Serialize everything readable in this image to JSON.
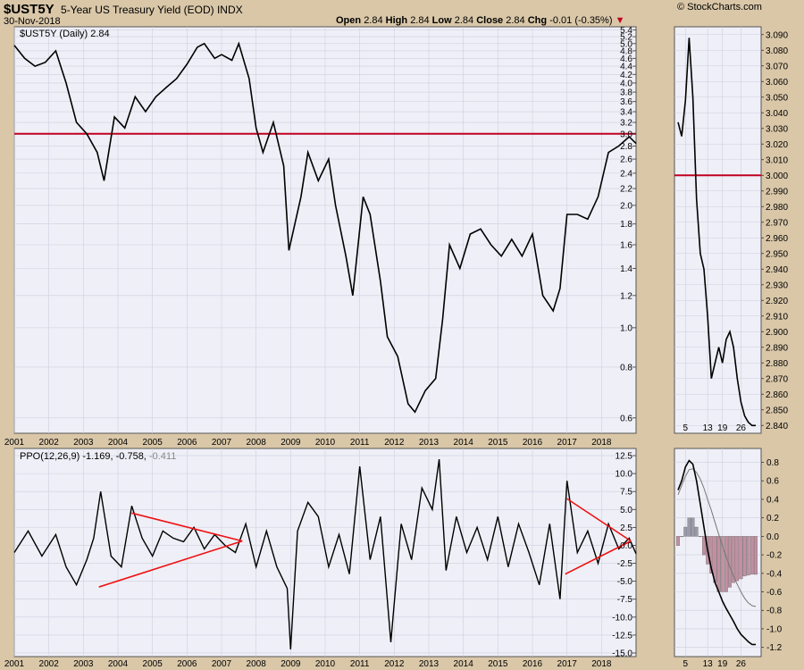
{
  "header": {
    "symbol": "$UST5Y",
    "description": "5-Year US Treasury Yield (EOD)",
    "exchange": "INDX",
    "date": "30-Nov-2018",
    "brand": "© StockCharts.com",
    "ohlc": {
      "open_label": "Open",
      "open": "2.84",
      "high_label": "High",
      "high": "2.84",
      "low_label": "Low",
      "low": "2.84",
      "close_label": "Close",
      "close": "2.84",
      "chg_label": "Chg",
      "chg": "-0.01 (-0.35%)",
      "arrow": "▼"
    }
  },
  "colors": {
    "background": "#d9c7a8",
    "plot_bg": "#efeff7",
    "grid": "#cfcfe0",
    "price_line": "#000000",
    "ref_line": "#c00020",
    "trend_line": "#ee1111",
    "hist_pos": "#9a9aaa",
    "hist_neg": "#c090a0",
    "signal_line": "#777777"
  },
  "chart_data": [
    {
      "id": "main-price",
      "type": "line",
      "legend": "$UST5Y (Daily) 2.84",
      "scale": "log",
      "ylim": [
        0.55,
        5.5
      ],
      "yticks": [
        "5.4",
        "5.2",
        "5.0",
        "4.8",
        "4.6",
        "4.4",
        "4.2",
        "4.0",
        "3.8",
        "3.6",
        "3.4",
        "3.2",
        "3.0",
        "2.8",
        "2.6",
        "2.4",
        "2.2",
        "2.0",
        "1.8",
        "1.6",
        "1.4",
        "1.2",
        "1.0",
        "0.8",
        "0.6"
      ],
      "xlim": [
        2001.0,
        2019.0
      ],
      "xticks": [
        "2001",
        "2002",
        "2003",
        "2004",
        "2005",
        "2006",
        "2007",
        "2008",
        "2009",
        "2010",
        "2011",
        "2012",
        "2013",
        "2014",
        "2015",
        "2016",
        "2017",
        "2018"
      ],
      "reference_line": 3.0,
      "x": [
        2001.0,
        2001.3,
        2001.6,
        2001.9,
        2002.2,
        2002.5,
        2002.8,
        2003.1,
        2003.4,
        2003.6,
        2003.9,
        2004.2,
        2004.5,
        2004.8,
        2005.1,
        2005.4,
        2005.7,
        2006.0,
        2006.3,
        2006.5,
        2006.8,
        2007.0,
        2007.3,
        2007.5,
        2007.8,
        2008.0,
        2008.2,
        2008.5,
        2008.8,
        2008.95,
        2009.3,
        2009.5,
        2009.8,
        2010.1,
        2010.3,
        2010.6,
        2010.8,
        2011.1,
        2011.3,
        2011.6,
        2011.8,
        2012.1,
        2012.4,
        2012.6,
        2012.9,
        2013.2,
        2013.4,
        2013.6,
        2013.9,
        2014.2,
        2014.5,
        2014.8,
        2015.1,
        2015.4,
        2015.7,
        2016.0,
        2016.3,
        2016.6,
        2016.8,
        2017.0,
        2017.3,
        2017.6,
        2017.9,
        2018.2,
        2018.5,
        2018.8,
        2019.0
      ],
      "y": [
        4.95,
        4.6,
        4.4,
        4.5,
        4.8,
        4.0,
        3.2,
        3.0,
        2.7,
        2.3,
        3.3,
        3.1,
        3.7,
        3.4,
        3.7,
        3.9,
        4.1,
        4.45,
        4.9,
        5.0,
        4.6,
        4.7,
        4.55,
        5.0,
        4.1,
        3.1,
        2.7,
        3.2,
        2.5,
        1.55,
        2.1,
        2.7,
        2.3,
        2.6,
        2.0,
        1.5,
        1.2,
        2.1,
        1.9,
        1.3,
        0.95,
        0.85,
        0.65,
        0.62,
        0.7,
        0.75,
        1.05,
        1.6,
        1.4,
        1.7,
        1.75,
        1.6,
        1.5,
        1.65,
        1.5,
        1.7,
        1.2,
        1.1,
        1.25,
        1.9,
        1.9,
        1.85,
        2.1,
        2.7,
        2.8,
        2.95,
        2.84
      ]
    },
    {
      "id": "main-zoom",
      "type": "line",
      "ylim": [
        2.835,
        3.095
      ],
      "yticks": [
        "3.090",
        "3.080",
        "3.070",
        "3.060",
        "3.050",
        "3.040",
        "3.030",
        "3.020",
        "3.010",
        "3.000",
        "2.990",
        "2.980",
        "2.970",
        "2.960",
        "2.950",
        "2.940",
        "2.930",
        "2.920",
        "2.910",
        "2.900",
        "2.890",
        "2.880",
        "2.870",
        "2.860",
        "2.850",
        "2.840"
      ],
      "xticks": [
        "5",
        "13",
        "19",
        "26"
      ],
      "reference_line": 3.0,
      "x": [
        1,
        2,
        3,
        4,
        5,
        6,
        7,
        8,
        9,
        10,
        11,
        12,
        13,
        14,
        15,
        16,
        17,
        18,
        19,
        20,
        21,
        22
      ],
      "y": [
        3.034,
        3.025,
        3.048,
        3.088,
        3.05,
        2.985,
        2.95,
        2.94,
        2.91,
        2.87,
        2.88,
        2.89,
        2.88,
        2.895,
        2.9,
        2.89,
        2.87,
        2.855,
        2.846,
        2.842,
        2.84,
        2.84
      ]
    },
    {
      "id": "ppo",
      "type": "line",
      "legend": "PPO(12,26,9) -1.169, -0.758, -0.411",
      "legend_ppo": "PPO(12,26,9) -1.169, -0.758,",
      "legend_hist": "-0.411",
      "ylim": [
        -15.5,
        13.5
      ],
      "yticks": [
        "12.5",
        "10.0",
        "7.5",
        "5.0",
        "2.5",
        "0.0",
        "-2.5",
        "-5.0",
        "-7.5",
        "-10.0",
        "-12.5",
        "-15.0"
      ],
      "xticks": [
        "2001",
        "2002",
        "2003",
        "2004",
        "2005",
        "2006",
        "2007",
        "2008",
        "2009",
        "2010",
        "2011",
        "2012",
        "2013",
        "2014",
        "2015",
        "2016",
        "2017",
        "2018"
      ],
      "x": [
        2001.0,
        2001.4,
        2001.8,
        2002.2,
        2002.5,
        2002.8,
        2003.1,
        2003.3,
        2003.5,
        2003.8,
        2004.1,
        2004.4,
        2004.7,
        2005.0,
        2005.3,
        2005.6,
        2005.9,
        2006.2,
        2006.5,
        2006.8,
        2007.1,
        2007.4,
        2007.7,
        2008.0,
        2008.3,
        2008.6,
        2008.9,
        2009.0,
        2009.2,
        2009.5,
        2009.8,
        2010.1,
        2010.4,
        2010.7,
        2011.0,
        2011.3,
        2011.6,
        2011.9,
        2012.2,
        2012.5,
        2012.8,
        2013.1,
        2013.3,
        2013.5,
        2013.8,
        2014.1,
        2014.4,
        2014.7,
        2015.0,
        2015.3,
        2015.6,
        2015.9,
        2016.2,
        2016.5,
        2016.8,
        2017.0,
        2017.3,
        2017.6,
        2017.9,
        2018.2,
        2018.5,
        2018.8,
        2019.0
      ],
      "y": [
        -1.0,
        2.0,
        -1.5,
        1.5,
        -3.0,
        -5.5,
        -2.0,
        1.0,
        7.5,
        -1.5,
        -3.0,
        5.5,
        1.0,
        -1.5,
        2.0,
        1.0,
        0.5,
        2.5,
        -0.5,
        1.5,
        0.0,
        -1.0,
        3.0,
        -3.0,
        2.0,
        -3.0,
        -6.0,
        -14.5,
        2.0,
        6.0,
        4.0,
        -3.0,
        1.5,
        -4.0,
        11.0,
        -2.0,
        4.0,
        -13.5,
        3.0,
        -2.0,
        8.0,
        5.0,
        12.0,
        -3.5,
        4.0,
        -1.0,
        2.5,
        -2.0,
        4.0,
        -3.0,
        3.0,
        -1.0,
        -5.5,
        3.0,
        -7.5,
        9.0,
        -1.0,
        2.0,
        -2.5,
        3.0,
        -0.5,
        1.0,
        -1.169
      ],
      "trend_lines": [
        {
          "x1": 2003.45,
          "y1": -5.8,
          "x2": 2007.6,
          "y2": 0.6
        },
        {
          "x1": 2004.4,
          "y1": 4.5,
          "x2": 2007.6,
          "y2": 0.6
        },
        {
          "x1": 2016.95,
          "y1": -4.0,
          "x2": 2018.85,
          "y2": 0.6
        },
        {
          "x1": 2017.0,
          "y1": 6.5,
          "x2": 2018.85,
          "y2": 0.6
        }
      ]
    },
    {
      "id": "ppo-zoom",
      "type": "line",
      "ylim": [
        -1.3,
        0.95
      ],
      "yticks": [
        "0.8",
        "0.6",
        "0.4",
        "0.2",
        "0.0",
        "-0.2",
        "-0.4",
        "-0.6",
        "-0.8",
        "-1.0",
        "-1.2"
      ],
      "xticks": [
        "5",
        "13",
        "19",
        "26"
      ],
      "x": [
        1,
        2,
        3,
        4,
        5,
        6,
        7,
        8,
        9,
        10,
        11,
        12,
        13,
        14,
        15,
        16,
        17,
        18,
        19,
        20,
        21,
        22
      ],
      "ppo": [
        0.5,
        0.6,
        0.75,
        0.82,
        0.78,
        0.6,
        0.35,
        0.1,
        -0.15,
        -0.35,
        -0.5,
        -0.6,
        -0.7,
        -0.78,
        -0.85,
        -0.92,
        -1.0,
        -1.06,
        -1.1,
        -1.14,
        -1.17,
        -1.169
      ],
      "signal": [
        0.45,
        0.55,
        0.65,
        0.72,
        0.73,
        0.69,
        0.62,
        0.52,
        0.4,
        0.28,
        0.15,
        0.02,
        -0.1,
        -0.22,
        -0.33,
        -0.43,
        -0.52,
        -0.6,
        -0.67,
        -0.72,
        -0.75,
        -0.758
      ],
      "histogram": [
        -0.1,
        0.0,
        0.1,
        0.2,
        0.2,
        0.1,
        0.0,
        -0.2,
        -0.3,
        -0.4,
        -0.5,
        -0.6,
        -0.6,
        -0.6,
        -0.55,
        -0.5,
        -0.48,
        -0.46,
        -0.43,
        -0.42,
        -0.41,
        -0.411
      ]
    }
  ]
}
